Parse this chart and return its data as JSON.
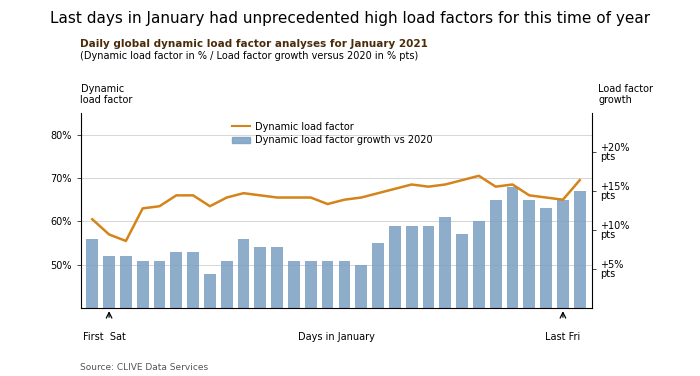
{
  "title": "Last days in January had unprecedented high load factors for this time of year",
  "subtitle": "Daily global dynamic load factor analyses for January 2021",
  "subtitle2": "(Dynamic load factor in % / Load factor growth versus 2020 in % pts)",
  "ylabel_left": "Dynamic\nload factor",
  "ylabel_right": "Load factor\ngrowth",
  "xlabel": "Days in January",
  "source": "Source: CLIVE Data Services",
  "legend_line": "Dynamic load factor",
  "legend_bar": "Dynamic load factor growth vs 2020",
  "bar_color": "#7a9fc2",
  "line_color": "#d4841a",
  "bar_values": [
    56,
    52,
    52,
    51,
    51,
    53,
    53,
    48,
    51,
    56,
    54,
    54,
    51,
    51,
    51,
    51,
    50,
    55,
    59,
    59,
    59,
    61,
    57,
    60,
    65,
    68,
    65,
    63,
    65,
    67
  ],
  "line_values": [
    60.5,
    57.0,
    55.5,
    63.0,
    63.5,
    66.0,
    66.0,
    63.5,
    65.5,
    66.5,
    66.0,
    65.5,
    65.5,
    65.5,
    64.0,
    65.0,
    65.5,
    66.5,
    67.5,
    68.5,
    68.0,
    68.5,
    69.5,
    70.5,
    68.0,
    68.5,
    66.0,
    65.5,
    65.0,
    69.5
  ],
  "ylim_left": [
    40,
    85
  ],
  "ylim_right": [
    0,
    25
  ],
  "yticks_left": [
    50,
    60,
    70,
    80
  ],
  "yticks_right": [
    5,
    10,
    15,
    20
  ],
  "ytick_labels_left": [
    "50%",
    "60%",
    "70%",
    "80%"
  ],
  "ytick_labels_right": [
    "+5%\npts",
    "+10%\npts",
    "+15%\npts",
    "+20%\npts"
  ],
  "first_sat_idx": 1,
  "last_fri_idx": 28,
  "title_fontsize": 11,
  "subtitle_fontsize": 7.5,
  "subtitle_color": "#4a2c0a",
  "axis_label_fontsize": 7,
  "tick_fontsize": 7,
  "legend_fontsize": 7,
  "source_fontsize": 6.5
}
